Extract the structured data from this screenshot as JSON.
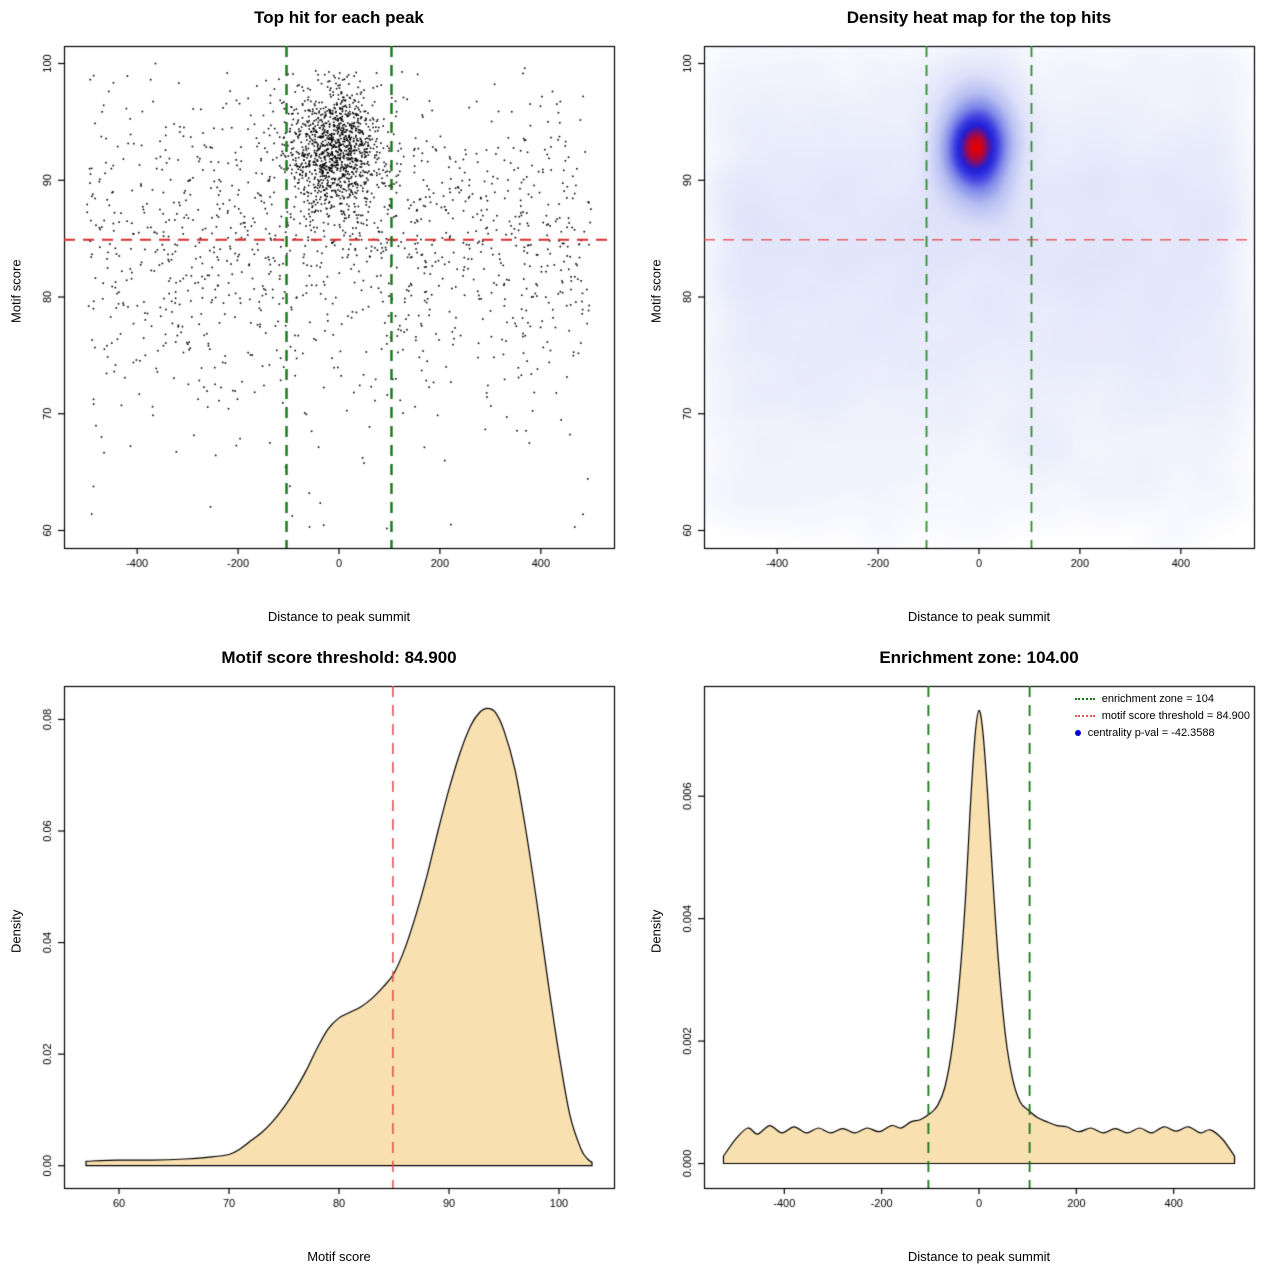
{
  "page": {
    "background": "#ffffff"
  },
  "chart_data": [
    {
      "id": "top-hit-scatter",
      "type": "scatter",
      "title": "Top hit for each peak",
      "xlabel": "Distance to peak summit",
      "ylabel": "Motif score",
      "xlim": [
        -545,
        545
      ],
      "ylim": [
        58.5,
        101.5
      ],
      "xticks": [
        -400,
        -200,
        0,
        200,
        400
      ],
      "yticks": [
        60,
        70,
        80,
        90,
        100
      ],
      "point_color": "#000000",
      "hline": {
        "y": 84.9,
        "color": "#d92b2b",
        "width": 2,
        "style": "dashed"
      },
      "vlines": {
        "x": [
          -104,
          104
        ],
        "color": "#157515",
        "width": 2.4,
        "style": "dashed"
      },
      "points_spec": {
        "seed": 1337,
        "x_range": [
          -500,
          500
        ],
        "y_range": [
          59.2,
          100.3
        ],
        "clusters": [
          {
            "n": 1150,
            "x_dist": "normal",
            "x_mean": -8,
            "x_sd": 46,
            "y_dist": "normal",
            "y_mean": 92.6,
            "y_sd": 2.7
          },
          {
            "n": 1250,
            "x_dist": "uniform",
            "x_min": -500,
            "x_max": 500,
            "y_dist": "normal",
            "y_mean": 85,
            "y_sd": 6.8
          },
          {
            "n": 60,
            "x_dist": "uniform",
            "x_min": -500,
            "x_max": 500,
            "y_dist": "uniform",
            "y_min": 60,
            "y_max": 77
          }
        ]
      }
    },
    {
      "id": "density-heatmap",
      "type": "heatmap",
      "title": "Density heat map for the top hits",
      "xlabel": "Distance to peak summit",
      "ylabel": "Motif score",
      "xlim": [
        -545,
        545
      ],
      "ylim": [
        58.5,
        101.5
      ],
      "xticks": [
        -400,
        -200,
        0,
        200,
        400
      ],
      "yticks": [
        60,
        70,
        80,
        90,
        100
      ],
      "gamma": 0.42,
      "colormap": [
        [
          0,
          "#ffffff"
        ],
        [
          0.15,
          "#eff1fc"
        ],
        [
          0.35,
          "#dde1f9"
        ],
        [
          0.55,
          "#b7bff2"
        ],
        [
          0.7,
          "#8089e9"
        ],
        [
          0.82,
          "#3c3ce0"
        ],
        [
          0.9,
          "#1d1dd8"
        ],
        [
          1,
          "#e60000"
        ]
      ],
      "hline": {
        "y": 84.9,
        "color": "rgba(236,60,60,0.8)",
        "width": 1.4,
        "style": "dashed"
      },
      "vlines": {
        "x": [
          -104,
          104
        ],
        "color": "#2e8b2e",
        "width": 1.8,
        "style": "dashed"
      },
      "points_spec": {
        "seed": 2024,
        "x_range": [
          -500,
          500
        ],
        "y_range": [
          59.2,
          100.5
        ],
        "clusters": [
          {
            "n": 2200,
            "x_dist": "normal",
            "x_mean": -5,
            "x_sd": 30,
            "y_dist": "normal",
            "y_mean": 92.8,
            "y_sd": 2.5
          },
          {
            "n": 3000,
            "x_dist": "uniform",
            "x_min": -500,
            "x_max": 500,
            "y_dist": "normal",
            "y_mean": 84.5,
            "y_sd": 7.5
          },
          {
            "n": 250,
            "x_dist": "uniform",
            "x_min": -500,
            "x_max": 500,
            "y_dist": "uniform",
            "y_min": 62,
            "y_max": 76
          }
        ]
      }
    },
    {
      "id": "motif-score-density",
      "type": "area",
      "title": "Motif score threshold: 84.900",
      "xlabel": "Motif score",
      "ylabel": "Density",
      "xlim": [
        55,
        105
      ],
      "ylim": [
        -0.004,
        0.086
      ],
      "xticks": [
        60,
        70,
        80,
        90,
        100
      ],
      "yticks": [
        0,
        0.02,
        0.04,
        0.06,
        0.08
      ],
      "ytick_labels": [
        "0.00",
        "0.02",
        "0.04",
        "0.06",
        "0.08"
      ],
      "fill": "#f8e0b0",
      "stroke": "#000000",
      "vline": {
        "x": 84.9,
        "color": "#e05555",
        "width": 1.6,
        "style": "dashed"
      },
      "points": [
        [
          57,
          0.0008
        ],
        [
          60,
          0.001
        ],
        [
          63,
          0.001
        ],
        [
          66,
          0.0012
        ],
        [
          68,
          0.0015
        ],
        [
          70,
          0.002
        ],
        [
          71,
          0.003
        ],
        [
          72,
          0.0045
        ],
        [
          73,
          0.006
        ],
        [
          74,
          0.008
        ],
        [
          75,
          0.0105
        ],
        [
          76,
          0.0135
        ],
        [
          77,
          0.017
        ],
        [
          78,
          0.021
        ],
        [
          79,
          0.0245
        ],
        [
          80,
          0.0265
        ],
        [
          81,
          0.0275
        ],
        [
          82,
          0.0285
        ],
        [
          83,
          0.03
        ],
        [
          84,
          0.032
        ],
        [
          85,
          0.0345
        ],
        [
          86,
          0.039
        ],
        [
          87,
          0.045
        ],
        [
          88,
          0.052
        ],
        [
          89,
          0.06
        ],
        [
          90,
          0.0675
        ],
        [
          91,
          0.074
        ],
        [
          92,
          0.079
        ],
        [
          92.8,
          0.0813
        ],
        [
          93.5,
          0.082
        ],
        [
          94.2,
          0.0813
        ],
        [
          95,
          0.078
        ],
        [
          96,
          0.071
        ],
        [
          97,
          0.06
        ],
        [
          98,
          0.047
        ],
        [
          99,
          0.033
        ],
        [
          100,
          0.02
        ],
        [
          101,
          0.009
        ],
        [
          102,
          0.003
        ],
        [
          102.6,
          0.0012
        ],
        [
          103,
          0.0006
        ]
      ]
    },
    {
      "id": "distance-density",
      "type": "area",
      "title": "Enrichment zone: 104.00",
      "xlabel": "Distance to peak summit",
      "ylabel": "Density",
      "xlim": [
        -565,
        565
      ],
      "ylim": [
        -0.0004,
        0.0078
      ],
      "xticks": [
        -400,
        -200,
        0,
        200,
        400
      ],
      "yticks": [
        0,
        0.002,
        0.004,
        0.006
      ],
      "ytick_labels": [
        "0.000",
        "0.002",
        "0.004",
        "0.006"
      ],
      "fill": "#f8e0b0",
      "stroke": "#000000",
      "vlines": {
        "x": [
          -104,
          104
        ],
        "color": "#157515",
        "width": 1.8,
        "style": "dashed"
      },
      "legend": {
        "entries": [
          {
            "marker": "line-dotted",
            "color": "#157515",
            "label": "enrichment zone = 104"
          },
          {
            "marker": "line-dotted",
            "color": "#e05555",
            "label": "motif score threshold = 84.900"
          },
          {
            "marker": "point",
            "color": "#0000cc",
            "label": "centrality p-val = -42.3588"
          }
        ]
      },
      "points": [
        [
          -525,
          0.00012
        ],
        [
          -500,
          0.0004
        ],
        [
          -475,
          0.00058
        ],
        [
          -455,
          0.00048
        ],
        [
          -430,
          0.00062
        ],
        [
          -405,
          0.0005
        ],
        [
          -380,
          0.0006
        ],
        [
          -355,
          0.0005
        ],
        [
          -330,
          0.00058
        ],
        [
          -305,
          0.0005
        ],
        [
          -280,
          0.00057
        ],
        [
          -255,
          0.0005
        ],
        [
          -230,
          0.00058
        ],
        [
          -205,
          0.00052
        ],
        [
          -180,
          0.00062
        ],
        [
          -160,
          0.00058
        ],
        [
          -140,
          0.00068
        ],
        [
          -120,
          0.00072
        ],
        [
          -100,
          0.00082
        ],
        [
          -85,
          0.00095
        ],
        [
          -70,
          0.00125
        ],
        [
          -55,
          0.0019
        ],
        [
          -40,
          0.003
        ],
        [
          -28,
          0.0043
        ],
        [
          -18,
          0.0058
        ],
        [
          -8,
          0.007
        ],
        [
          0,
          0.0074
        ],
        [
          8,
          0.00705
        ],
        [
          18,
          0.006
        ],
        [
          28,
          0.0047
        ],
        [
          40,
          0.0033
        ],
        [
          55,
          0.00205
        ],
        [
          70,
          0.00135
        ],
        [
          85,
          0.001
        ],
        [
          100,
          0.00088
        ],
        [
          120,
          0.00075
        ],
        [
          140,
          0.00068
        ],
        [
          160,
          0.00062
        ],
        [
          180,
          0.0006
        ],
        [
          205,
          0.00052
        ],
        [
          230,
          0.00058
        ],
        [
          255,
          0.0005
        ],
        [
          280,
          0.00057
        ],
        [
          305,
          0.0005
        ],
        [
          330,
          0.00058
        ],
        [
          355,
          0.0005
        ],
        [
          380,
          0.0006
        ],
        [
          405,
          0.00053
        ],
        [
          430,
          0.0006
        ],
        [
          455,
          0.0005
        ],
        [
          475,
          0.00055
        ],
        [
          500,
          0.0004
        ],
        [
          525,
          0.00012
        ]
      ]
    }
  ]
}
